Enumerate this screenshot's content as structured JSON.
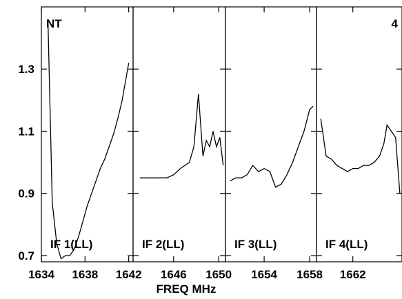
{
  "chart_data": {
    "type": "line",
    "corner_left": "NT",
    "corner_right": "4",
    "xlabel": "FREQ MHz",
    "ylabel": "",
    "ylim": [
      0.68,
      1.5
    ],
    "y_ticks": [
      0.7,
      0.9,
      1.1,
      1.3
    ],
    "y_tick_labels": [
      "0.7",
      "0.9",
      "1.1",
      "1.3"
    ],
    "grid": false,
    "legend": "none",
    "line_color": "#000000",
    "panels": [
      {
        "name": "IF 1(LL)",
        "xlim": [
          1634,
          1642.4
        ],
        "x_ticks": [
          1634,
          1638,
          1642
        ],
        "x_tick_labels": [
          "1634",
          "1638",
          "1642"
        ],
        "x": [
          1634.6,
          1635.0,
          1635.4,
          1635.8,
          1636.2,
          1636.6,
          1637.0,
          1637.4,
          1637.8,
          1638.2,
          1638.6,
          1639.0,
          1639.4,
          1639.8,
          1640.2,
          1640.6,
          1641.0,
          1641.4,
          1641.8,
          1642.0
        ],
        "y": [
          1.46,
          0.87,
          0.74,
          0.69,
          0.7,
          0.7,
          0.72,
          0.76,
          0.81,
          0.86,
          0.9,
          0.94,
          0.98,
          1.01,
          1.05,
          1.09,
          1.14,
          1.2,
          1.28,
          1.32
        ]
      },
      {
        "name": "IF 2(LL)",
        "xlim": [
          1642.4,
          1650.6
        ],
        "x_ticks": [
          1646,
          1650
        ],
        "x_tick_labels": [
          "1646",
          "1650"
        ],
        "x": [
          1643.0,
          1643.6,
          1644.2,
          1644.8,
          1645.4,
          1646.0,
          1646.6,
          1647.0,
          1647.4,
          1647.8,
          1648.2,
          1648.6,
          1648.9,
          1649.2,
          1649.5,
          1649.8,
          1650.1,
          1650.4
        ],
        "y": [
          0.95,
          0.95,
          0.95,
          0.95,
          0.95,
          0.96,
          0.98,
          0.99,
          1.0,
          1.05,
          1.22,
          1.02,
          1.07,
          1.05,
          1.1,
          1.05,
          1.08,
          0.99
        ]
      },
      {
        "name": "IF 3(LL)",
        "xlim": [
          1650.6,
          1658.6
        ],
        "x_ticks": [
          1654,
          1658
        ],
        "x_tick_labels": [
          "1654",
          "1658"
        ],
        "x": [
          1651.0,
          1651.5,
          1652.0,
          1652.5,
          1653.0,
          1653.5,
          1654.0,
          1654.5,
          1655.0,
          1655.5,
          1656.0,
          1656.5,
          1657.0,
          1657.5,
          1658.0,
          1658.3
        ],
        "y": [
          0.94,
          0.95,
          0.95,
          0.96,
          0.99,
          0.97,
          0.98,
          0.97,
          0.92,
          0.93,
          0.96,
          1.0,
          1.05,
          1.1,
          1.17,
          1.18
        ]
      },
      {
        "name": "IF 4(LL)",
        "xlim": [
          1658.6,
          1666.6
        ],
        "x_ticks": [
          1662
        ],
        "x_tick_labels": [
          "1662"
        ],
        "x": [
          1659.0,
          1659.5,
          1660.0,
          1660.5,
          1661.0,
          1661.5,
          1662.0,
          1662.5,
          1663.0,
          1663.5,
          1664.0,
          1664.5,
          1664.9,
          1665.2,
          1665.6,
          1666.0,
          1666.4
        ],
        "y": [
          1.14,
          1.02,
          1.01,
          0.99,
          0.98,
          0.97,
          0.98,
          0.98,
          0.99,
          0.99,
          1.0,
          1.02,
          1.06,
          1.12,
          1.1,
          1.08,
          0.9
        ]
      }
    ]
  }
}
